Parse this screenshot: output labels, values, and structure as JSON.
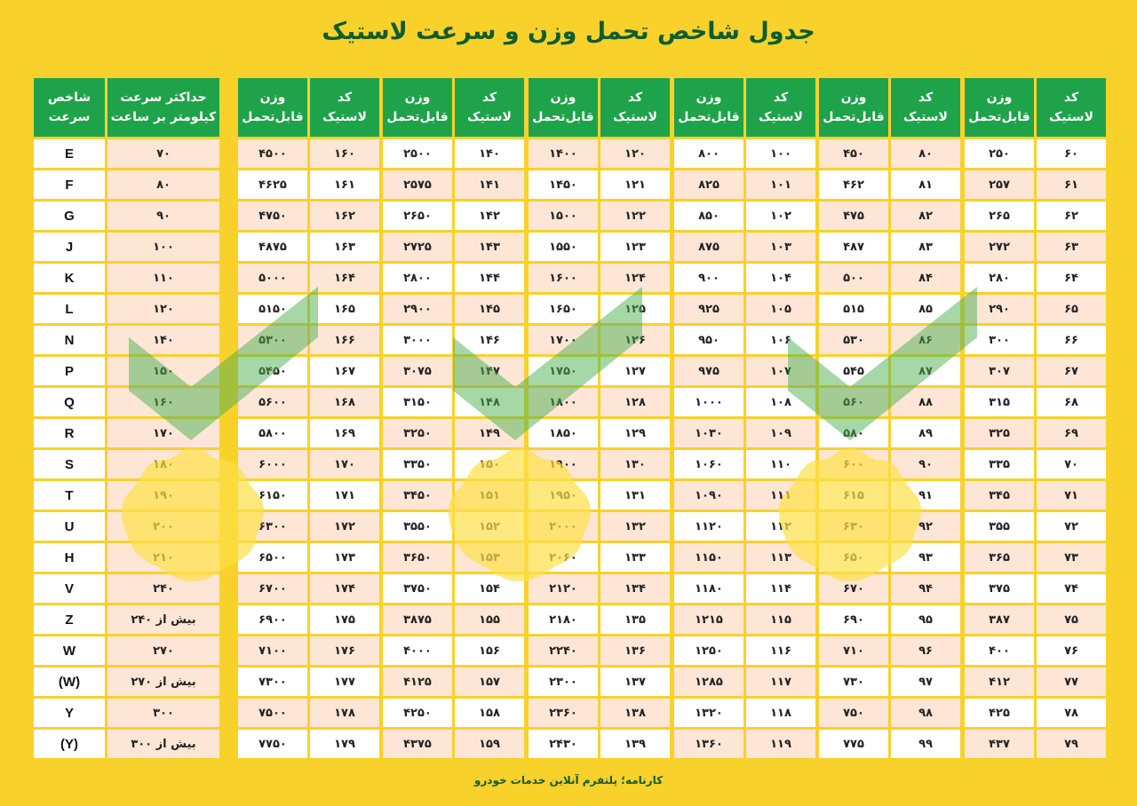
{
  "title": "جدول شاخص تحمل وزن و سرعت لاستیک",
  "footer": "کارنامه؛ پلتفرم آنلاین خدمات خودرو",
  "colors": {
    "background": "#f9d12b",
    "header_green": "#1fa34a",
    "title_green": "#0f5c2e",
    "row_white": "#ffffff",
    "row_peach": "#fde6d6",
    "check_green": "#4caf50",
    "badge_yellow": "#fde047"
  },
  "load_headers": {
    "code": "کد\nلاستیک",
    "weight": "وزن\nقابل‌تحمل"
  },
  "speed_headers": {
    "index": "شاخص\nسرعت",
    "max": "حداکثر سرعت\nکیلومتر بر ساعت"
  },
  "load_tables": [
    {
      "codes": [
        "۶۰",
        "۶۱",
        "۶۲",
        "۶۳",
        "۶۴",
        "۶۵",
        "۶۶",
        "۶۷",
        "۶۸",
        "۶۹",
        "۷۰",
        "۷۱",
        "۷۲",
        "۷۳",
        "۷۴",
        "۷۵",
        "۷۶",
        "۷۷",
        "۷۸",
        "۷۹"
      ],
      "weights": [
        "۲۵۰",
        "۲۵۷",
        "۲۶۵",
        "۲۷۲",
        "۲۸۰",
        "۲۹۰",
        "۳۰۰",
        "۳۰۷",
        "۳۱۵",
        "۳۲۵",
        "۳۳۵",
        "۳۴۵",
        "۳۵۵",
        "۳۶۵",
        "۳۷۵",
        "۳۸۷",
        "۴۰۰",
        "۴۱۲",
        "۴۲۵",
        "۴۳۷"
      ]
    },
    {
      "codes": [
        "۸۰",
        "۸۱",
        "۸۲",
        "۸۳",
        "۸۴",
        "۸۵",
        "۸۶",
        "۸۷",
        "۸۸",
        "۸۹",
        "۹۰",
        "۹۱",
        "۹۲",
        "۹۳",
        "۹۴",
        "۹۵",
        "۹۶",
        "۹۷",
        "۹۸",
        "۹۹"
      ],
      "weights": [
        "۴۵۰",
        "۴۶۲",
        "۴۷۵",
        "۴۸۷",
        "۵۰۰",
        "۵۱۵",
        "۵۳۰",
        "۵۴۵",
        "۵۶۰",
        "۵۸۰",
        "۶۰۰",
        "۶۱۵",
        "۶۳۰",
        "۶۵۰",
        "۶۷۰",
        "۶۹۰",
        "۷۱۰",
        "۷۳۰",
        "۷۵۰",
        "۷۷۵"
      ]
    },
    {
      "codes": [
        "۱۰۰",
        "۱۰۱",
        "۱۰۲",
        "۱۰۳",
        "۱۰۴",
        "۱۰۵",
        "۱۰۶",
        "۱۰۷",
        "۱۰۸",
        "۱۰۹",
        "۱۱۰",
        "۱۱۱",
        "۱۱۲",
        "۱۱۳",
        "۱۱۴",
        "۱۱۵",
        "۱۱۶",
        "۱۱۷",
        "۱۱۸",
        "۱۱۹"
      ],
      "weights": [
        "۸۰۰",
        "۸۲۵",
        "۸۵۰",
        "۸۷۵",
        "۹۰۰",
        "۹۲۵",
        "۹۵۰",
        "۹۷۵",
        "۱۰۰۰",
        "۱۰۳۰",
        "۱۰۶۰",
        "۱۰۹۰",
        "۱۱۲۰",
        "۱۱۵۰",
        "۱۱۸۰",
        "۱۲۱۵",
        "۱۲۵۰",
        "۱۲۸۵",
        "۱۳۲۰",
        "۱۳۶۰"
      ]
    },
    {
      "codes": [
        "۱۲۰",
        "۱۲۱",
        "۱۲۲",
        "۱۲۳",
        "۱۲۴",
        "۱۲۵",
        "۱۲۶",
        "۱۲۷",
        "۱۲۸",
        "۱۲۹",
        "۱۳۰",
        "۱۳۱",
        "۱۳۲",
        "۱۳۳",
        "۱۳۴",
        "۱۳۵",
        "۱۳۶",
        "۱۳۷",
        "۱۳۸",
        "۱۳۹"
      ],
      "weights": [
        "۱۴۰۰",
        "۱۴۵۰",
        "۱۵۰۰",
        "۱۵۵۰",
        "۱۶۰۰",
        "۱۶۵۰",
        "۱۷۰۰",
        "۱۷۵۰",
        "۱۸۰۰",
        "۱۸۵۰",
        "۱۹۰۰",
        "۱۹۵۰",
        "۲۰۰۰",
        "۲۰۶۰",
        "۲۱۲۰",
        "۲۱۸۰",
        "۲۲۴۰",
        "۲۳۰۰",
        "۲۳۶۰",
        "۲۴۳۰"
      ]
    },
    {
      "codes": [
        "۱۴۰",
        "۱۴۱",
        "۱۴۲",
        "۱۴۳",
        "۱۴۴",
        "۱۴۵",
        "۱۴۶",
        "۱۴۷",
        "۱۴۸",
        "۱۴۹",
        "۱۵۰",
        "۱۵۱",
        "۱۵۲",
        "۱۵۳",
        "۱۵۴",
        "۱۵۵",
        "۱۵۶",
        "۱۵۷",
        "۱۵۸",
        "۱۵۹"
      ],
      "weights": [
        "۲۵۰۰",
        "۲۵۷۵",
        "۲۶۵۰",
        "۲۷۲۵",
        "۲۸۰۰",
        "۲۹۰۰",
        "۳۰۰۰",
        "۳۰۷۵",
        "۳۱۵۰",
        "۳۲۵۰",
        "۳۳۵۰",
        "۳۴۵۰",
        "۳۵۵۰",
        "۳۶۵۰",
        "۳۷۵۰",
        "۳۸۷۵",
        "۴۰۰۰",
        "۴۱۲۵",
        "۴۲۵۰",
        "۴۳۷۵"
      ]
    },
    {
      "codes": [
        "۱۶۰",
        "۱۶۱",
        "۱۶۲",
        "۱۶۳",
        "۱۶۴",
        "۱۶۵",
        "۱۶۶",
        "۱۶۷",
        "۱۶۸",
        "۱۶۹",
        "۱۷۰",
        "۱۷۱",
        "۱۷۲",
        "۱۷۳",
        "۱۷۴",
        "۱۷۵",
        "۱۷۶",
        "۱۷۷",
        "۱۷۸",
        "۱۷۹"
      ],
      "weights": [
        "۴۵۰۰",
        "۴۶۲۵",
        "۴۷۵۰",
        "۴۸۷۵",
        "۵۰۰۰",
        "۵۱۵۰",
        "۵۳۰۰",
        "۵۴۵۰",
        "۵۶۰۰",
        "۵۸۰۰",
        "۶۰۰۰",
        "۶۱۵۰",
        "۶۳۰۰",
        "۶۵۰۰",
        "۶۷۰۰",
        "۶۹۰۰",
        "۷۱۰۰",
        "۷۳۰۰",
        "۷۵۰۰",
        "۷۷۵۰"
      ]
    }
  ],
  "speed_table": {
    "indexes": [
      "E",
      "F",
      "G",
      "J",
      "K",
      "L",
      "N",
      "P",
      "Q",
      "R",
      "S",
      "T",
      "U",
      "H",
      "V",
      "Z",
      "W",
      "(W)",
      "Y",
      "(Y)"
    ],
    "max_speeds": [
      "۷۰",
      "۸۰",
      "۹۰",
      "۱۰۰",
      "۱۱۰",
      "۱۲۰",
      "۱۴۰",
      "۱۵۰",
      "۱۶۰",
      "۱۷۰",
      "۱۸۰",
      "۱۹۰",
      "۲۰۰",
      "۲۱۰",
      "۲۴۰",
      "بیش از ۲۴۰",
      "۲۷۰",
      "بیش از ۲۷۰",
      "۳۰۰",
      "بیش از ۳۰۰"
    ]
  }
}
